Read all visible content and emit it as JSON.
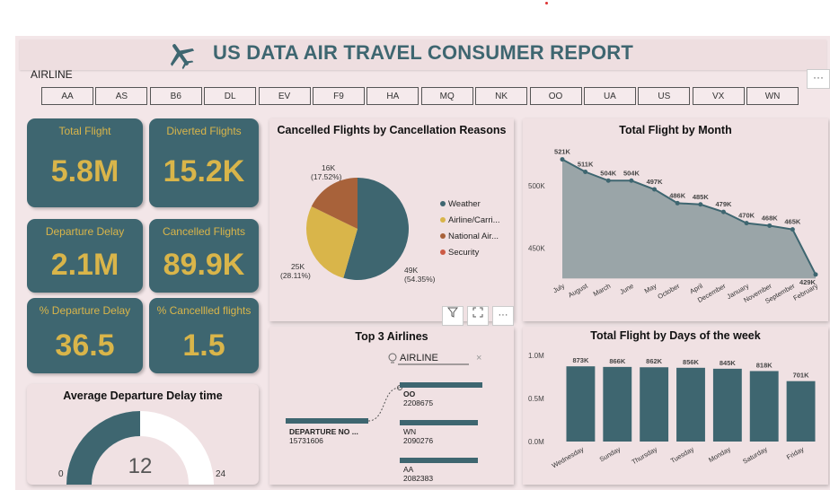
{
  "header": {
    "title": "US DATA AIR TRAVEL CONSUMER REPORT"
  },
  "slicer": {
    "label": "AIRLINE",
    "more": "···",
    "options": [
      "AA",
      "AS",
      "B6",
      "DL",
      "EV",
      "F9",
      "HA",
      "MQ",
      "NK",
      "OO",
      "UA",
      "US",
      "VX",
      "WN"
    ]
  },
  "kpis": [
    {
      "label": "Total Flight",
      "value": "5.8M"
    },
    {
      "label": "Diverted Flights",
      "value": "15.2K"
    },
    {
      "label": "Departure Delay",
      "value": "2.1M"
    },
    {
      "label": "Cancelled Flights",
      "value": "89.9K"
    },
    {
      "label": "% Departure Delay",
      "value": "36.5"
    },
    {
      "label": "% Cancellled flights",
      "value": "1.5"
    }
  ],
  "colors": {
    "teal": "#3e6670",
    "gold": "#d9b54a",
    "rust": "#a8623a",
    "red": "#cc5a45",
    "grey": "#9aa5a8"
  },
  "pie_card": {
    "chart_data": {
      "type": "pie",
      "title": "Cancelled Flights by Cancellation Reasons",
      "slices": [
        {
          "name": "Weather",
          "value": 49000,
          "label": "49K",
          "pct": "(54.35%)",
          "color": "#3e6670"
        },
        {
          "name": "Airline/Carri...",
          "value": 25000,
          "label": "25K",
          "pct": "(28.11%)",
          "color": "#d9b54a"
        },
        {
          "name": "National Air...",
          "value": 16000,
          "label": "16K",
          "pct": "(17.52%)",
          "color": "#a8623a"
        },
        {
          "name": "Security",
          "value": 0,
          "label": "",
          "pct": "",
          "color": "#cc5a45"
        }
      ]
    }
  },
  "line_card": {
    "chart_data": {
      "type": "area",
      "title": "Total Flight by Month",
      "categories": [
        "July",
        "August",
        "March",
        "June",
        "May",
        "October",
        "April",
        "December",
        "January",
        "November",
        "September",
        "February"
      ],
      "values": [
        521000,
        511000,
        504000,
        504000,
        497000,
        486000,
        485000,
        479000,
        470000,
        468000,
        465000,
        429000
      ],
      "value_labels": [
        "521K",
        "511K",
        "504K",
        "504K",
        "497K",
        "486K",
        "485K",
        "479K",
        "470K",
        "468K",
        "465K",
        "429K"
      ],
      "yticks": [
        "500K",
        "450K"
      ],
      "ylim": [
        426000,
        525000
      ]
    }
  },
  "bar_card": {
    "chart_data": {
      "type": "bar",
      "title": "Total Flight by Days of the week",
      "categories": [
        "Wednesday",
        "Sunday",
        "Thursday",
        "Tuesday",
        "Monday",
        "Saturday",
        "Friday"
      ],
      "values": [
        873000,
        866000,
        862000,
        856000,
        845000,
        818000,
        701000
      ],
      "value_labels": [
        "873K",
        "866K",
        "862K",
        "856K",
        "845K",
        "818K",
        "701K"
      ],
      "yticks": [
        "1.0M",
        "0.5M",
        "0.0M"
      ],
      "ylim": [
        0,
        1000000
      ]
    }
  },
  "tree_card": {
    "title": "Top 3 Airlines",
    "filter_label": "AIRLINE",
    "root": {
      "label": "DEPARTURE NO ...",
      "value": "15731606"
    },
    "nodes": [
      {
        "label": "OO",
        "value": "2208675"
      },
      {
        "label": "WN",
        "value": "2090276"
      },
      {
        "label": "AA",
        "value": "2082383"
      }
    ],
    "close": "×"
  },
  "gauge_card": {
    "title": "Average Departure Delay time",
    "value": "12",
    "min": "0",
    "max": "24",
    "fraction": 0.5
  },
  "toolbar": {
    "filter_icon": "funnel-icon",
    "focus_icon": "focus-mode-icon",
    "more": "···"
  }
}
